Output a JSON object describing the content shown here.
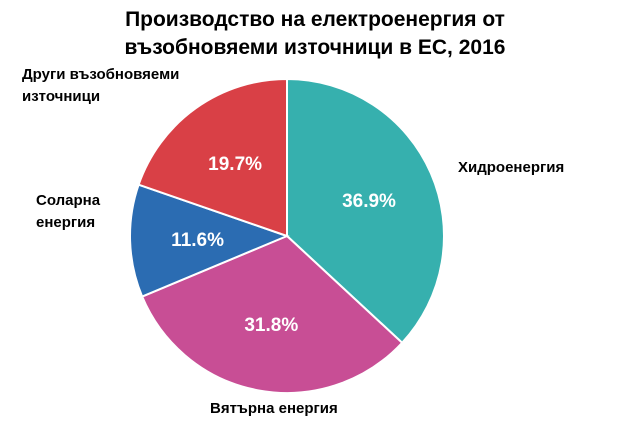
{
  "chart_data": {
    "type": "pie",
    "title": [
      "Производство на електроенергия от",
      "възобновяеми източници в ЕС, 2016"
    ],
    "slices": [
      {
        "label": "Хидроенергия",
        "value": 36.9,
        "value_label": "36.9%",
        "color": "#36B0AE"
      },
      {
        "label": "Вятърна енергия",
        "value": 31.8,
        "value_label": "31.8%",
        "color": "#C84E95"
      },
      {
        "label": "Соларна енергия",
        "label_lines": [
          "Соларна",
          "енергия"
        ],
        "value": 11.6,
        "value_label": "11.6%",
        "color": "#2B6CB2"
      },
      {
        "label": "Други възобновяеми източници",
        "label_lines": [
          "Други възобновяеми",
          "източници"
        ],
        "value": 19.7,
        "value_label": "19.7%",
        "color": "#D94046"
      }
    ],
    "start_angle": "12 o'clock",
    "direction": "clockwise",
    "legend": "none"
  }
}
